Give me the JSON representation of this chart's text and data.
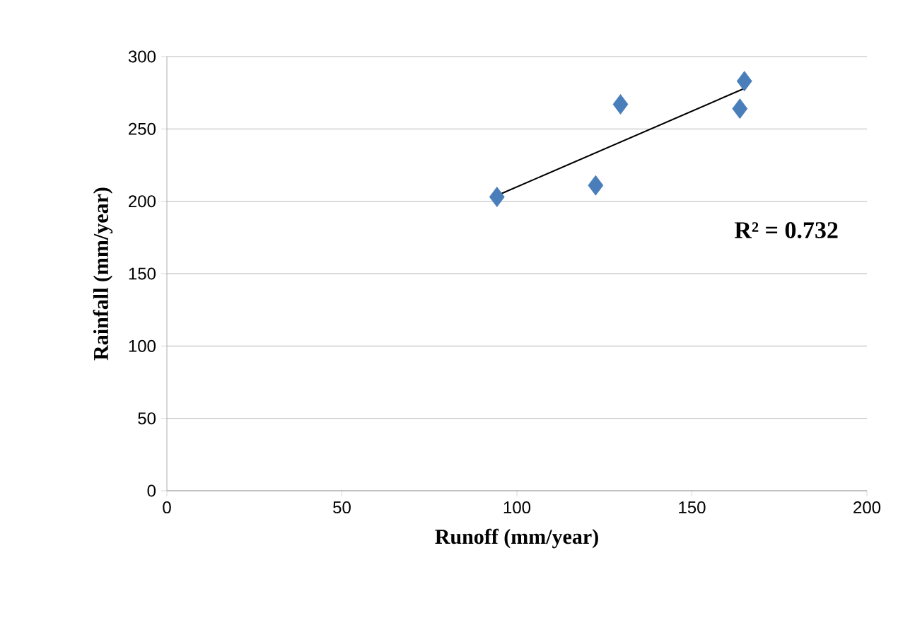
{
  "chart_data": {
    "type": "scatter",
    "xlabel": "Runoff (mm/year)",
    "ylabel": "Rainfall (mm/year)",
    "series": [
      {
        "color": "#4a7ebb",
        "x": [
          94.3,
          122.5,
          129.6,
          163.7,
          165
        ],
        "values": [
          203,
          211,
          267,
          264,
          283
        ]
      },
      {
        "type": "line",
        "marker": "none",
        "color": "#000000",
        "x": [
          94.3,
          165
        ],
        "values": [
          204,
          278
        ]
      }
    ],
    "annotations": [
      "R² = 0.732"
    ],
    "xlim": [
      0,
      200
    ],
    "xticks": [
      0,
      50,
      100,
      150,
      200
    ],
    "ylim": [
      0,
      300
    ],
    "yticks": [
      0,
      50,
      100,
      150,
      200,
      250,
      300
    ],
    "grid": "y",
    "marker": "diamond"
  }
}
